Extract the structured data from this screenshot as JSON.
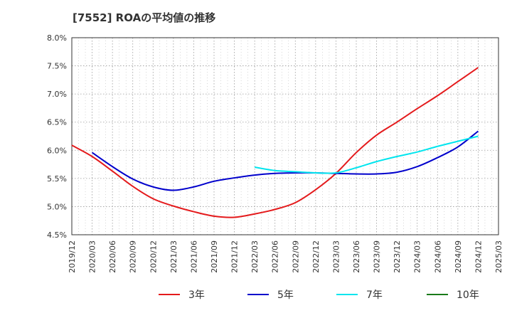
{
  "chart_data": {
    "type": "line",
    "title": "[7552]  ROAの平均値の推移",
    "xlabel": "",
    "ylabel": "",
    "ylim": [
      4.5,
      8.0
    ],
    "y_ticks": [
      "4.5%",
      "5.0%",
      "5.5%",
      "6.0%",
      "6.5%",
      "7.0%",
      "7.5%",
      "8.0%"
    ],
    "x_ticks": [
      "2019/12",
      "2020/03",
      "2020/06",
      "2020/09",
      "2020/12",
      "2021/03",
      "2021/06",
      "2021/09",
      "2021/12",
      "2022/03",
      "2022/06",
      "2022/09",
      "2022/12",
      "2023/03",
      "2023/06",
      "2023/09",
      "2023/12",
      "2024/03",
      "2024/06",
      "2024/09",
      "2024/12",
      "2025/03"
    ],
    "grid": true,
    "legend_position": "bottom",
    "series": [
      {
        "name": "3年",
        "color": "#e41a1c",
        "x": [
          "2019/12",
          "2020/03",
          "2020/06",
          "2020/09",
          "2020/12",
          "2021/03",
          "2021/06",
          "2021/09",
          "2021/12",
          "2022/03",
          "2022/06",
          "2022/09",
          "2022/12",
          "2023/03",
          "2023/06",
          "2023/09",
          "2023/12",
          "2024/03",
          "2024/06",
          "2024/09",
          "2024/12"
        ],
        "values": [
          6.09,
          5.89,
          5.63,
          5.36,
          5.14,
          5.01,
          4.91,
          4.83,
          4.81,
          4.87,
          4.95,
          5.07,
          5.3,
          5.59,
          5.96,
          6.27,
          6.5,
          6.74,
          6.97,
          7.22,
          7.47
        ]
      },
      {
        "name": "5年",
        "color": "#0000cc",
        "x": [
          "2020/03",
          "2020/06",
          "2020/09",
          "2020/12",
          "2021/03",
          "2021/06",
          "2021/09",
          "2021/12",
          "2022/03",
          "2022/06",
          "2022/09",
          "2022/12",
          "2023/03",
          "2023/06",
          "2023/09",
          "2023/12",
          "2024/03",
          "2024/06",
          "2024/09",
          "2024/12"
        ],
        "values": [
          5.96,
          5.71,
          5.49,
          5.35,
          5.29,
          5.35,
          5.45,
          5.51,
          5.56,
          5.59,
          5.6,
          5.6,
          5.59,
          5.58,
          5.58,
          5.61,
          5.71,
          5.87,
          6.06,
          6.34
        ]
      },
      {
        "name": "7年",
        "color": "#00e5ee",
        "x": [
          "2022/03",
          "2022/06",
          "2022/09",
          "2022/12",
          "2023/03",
          "2023/06",
          "2023/09",
          "2023/12",
          "2024/03",
          "2024/06",
          "2024/09",
          "2024/12"
        ],
        "values": [
          5.7,
          5.64,
          5.62,
          5.6,
          5.6,
          5.69,
          5.8,
          5.89,
          5.97,
          6.07,
          6.16,
          6.25
        ]
      },
      {
        "name": "10年",
        "color": "#1a7a1a",
        "x": [],
        "values": []
      }
    ]
  }
}
